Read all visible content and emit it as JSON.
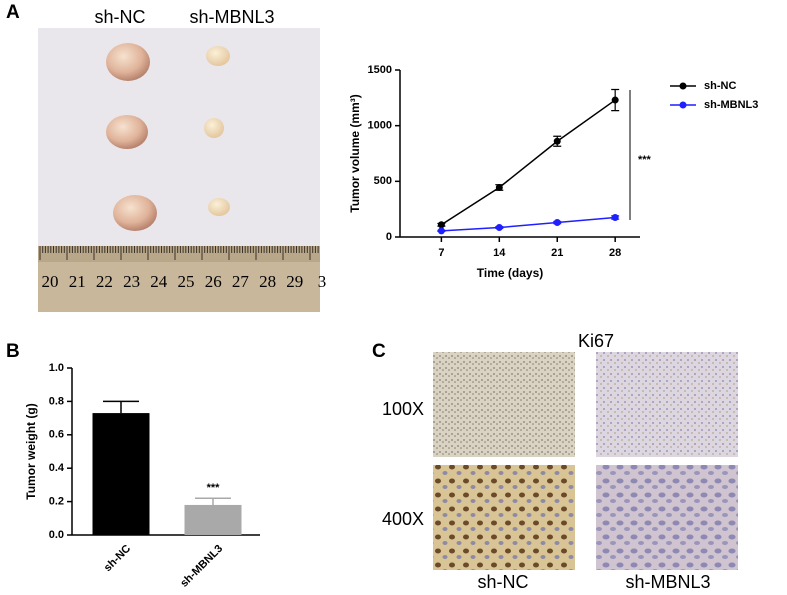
{
  "panel_labels": [
    "A",
    "B",
    "C"
  ],
  "photo": {
    "group_labels": [
      "sh-NC",
      "sh-MBNL3"
    ],
    "ruler_labels": [
      "20",
      "21",
      "22",
      "23",
      "24",
      "25",
      "26",
      "27",
      "28",
      "29",
      "3"
    ]
  },
  "chart_data": [
    {
      "type": "line",
      "xlabel": "Time (days)",
      "ylabel": "Tumor volume (mm³)",
      "x": [
        7,
        14,
        21,
        28
      ],
      "xlim": [
        2,
        31
      ],
      "xticks": [
        7,
        14,
        21,
        28
      ],
      "ylim": [
        0,
        1500
      ],
      "yticks": [
        0,
        500,
        1000,
        1500
      ],
      "annotation": "***",
      "legend": "right",
      "series": [
        {
          "name": "sh-NC",
          "color": "#000000",
          "values": [
            110,
            445,
            860,
            1230
          ],
          "errors": [
            12,
            25,
            45,
            95
          ]
        },
        {
          "name": "sh-MBNL3",
          "color": "#1f1fff",
          "values": [
            55,
            85,
            130,
            175
          ],
          "errors": [
            5,
            8,
            10,
            15
          ]
        }
      ]
    },
    {
      "type": "bar",
      "ylabel": "Tumor weight (g)",
      "categories": [
        "sh-NC",
        "sh-MBNL3"
      ],
      "values": [
        0.73,
        0.18
      ],
      "errors": [
        0.07,
        0.04
      ],
      "colors": [
        "#000000",
        "#a9a9a9"
      ],
      "ylim": [
        0,
        1.0
      ],
      "yticks": [
        {
          "value": 0,
          "label": "0.0"
        },
        0.2,
        0.4,
        0.6,
        0.8,
        {
          "value": 1.0,
          "label": "1.0"
        }
      ],
      "annotation": "***"
    }
  ],
  "micrographs": {
    "title": "Ki67",
    "row_labels": [
      "100X",
      "400X"
    ],
    "column_labels": [
      "sh-NC",
      "sh-MBNL3"
    ]
  }
}
